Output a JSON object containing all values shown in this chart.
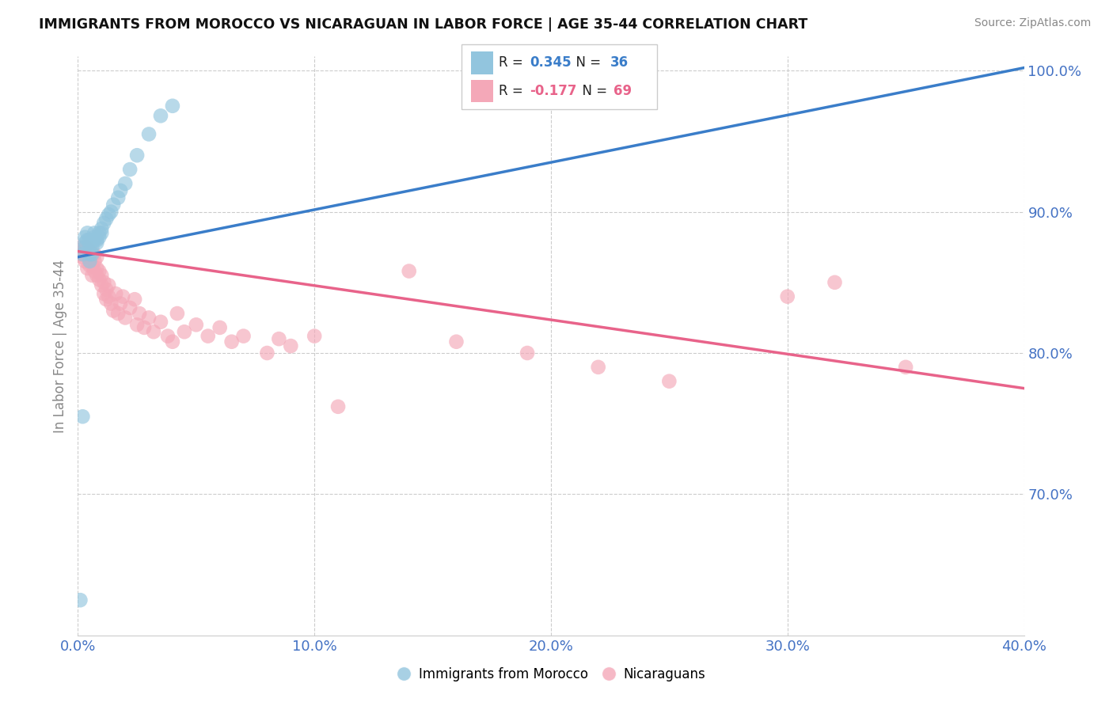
{
  "title": "IMMIGRANTS FROM MOROCCO VS NICARAGUAN IN LABOR FORCE | AGE 35-44 CORRELATION CHART",
  "source": "Source: ZipAtlas.com",
  "ylabel": "In Labor Force | Age 35-44",
  "legend_labels": [
    "Immigrants from Morocco",
    "Nicaraguans"
  ],
  "r_morocco": 0.345,
  "n_morocco": 36,
  "r_nicaraguan": -0.177,
  "n_nicaraguan": 69,
  "xlim": [
    0.0,
    0.4
  ],
  "ylim": [
    0.6,
    1.01
  ],
  "yticks": [
    0.7,
    0.8,
    0.9,
    1.0
  ],
  "xticks": [
    0.0,
    0.1,
    0.2,
    0.3,
    0.4
  ],
  "morocco_color": "#92c5de",
  "nicaraguan_color": "#f4a8b8",
  "morocco_line_color": "#3a7dc9",
  "nicaraguan_line_color": "#e8638a",
  "morocco_scatter_x": [
    0.001,
    0.002,
    0.002,
    0.003,
    0.003,
    0.003,
    0.004,
    0.004,
    0.005,
    0.005,
    0.005,
    0.005,
    0.006,
    0.006,
    0.007,
    0.007,
    0.007,
    0.008,
    0.008,
    0.009,
    0.009,
    0.01,
    0.01,
    0.011,
    0.012,
    0.013,
    0.014,
    0.015,
    0.017,
    0.018,
    0.02,
    0.022,
    0.025,
    0.03,
    0.035,
    0.04
  ],
  "morocco_scatter_y": [
    0.625,
    0.755,
    0.87,
    0.875,
    0.878,
    0.882,
    0.88,
    0.885,
    0.865,
    0.87,
    0.875,
    0.88,
    0.87,
    0.875,
    0.88,
    0.882,
    0.885,
    0.878,
    0.88,
    0.882,
    0.885,
    0.885,
    0.888,
    0.892,
    0.895,
    0.898,
    0.9,
    0.905,
    0.91,
    0.915,
    0.92,
    0.93,
    0.94,
    0.955,
    0.968,
    0.975
  ],
  "nicaraguan_scatter_x": [
    0.001,
    0.001,
    0.002,
    0.002,
    0.003,
    0.003,
    0.003,
    0.004,
    0.004,
    0.004,
    0.005,
    0.005,
    0.005,
    0.006,
    0.006,
    0.006,
    0.007,
    0.007,
    0.007,
    0.008,
    0.008,
    0.008,
    0.009,
    0.009,
    0.01,
    0.01,
    0.011,
    0.011,
    0.012,
    0.012,
    0.013,
    0.013,
    0.014,
    0.015,
    0.016,
    0.017,
    0.018,
    0.019,
    0.02,
    0.022,
    0.024,
    0.025,
    0.026,
    0.028,
    0.03,
    0.032,
    0.035,
    0.038,
    0.04,
    0.042,
    0.045,
    0.05,
    0.055,
    0.06,
    0.065,
    0.07,
    0.08,
    0.085,
    0.09,
    0.1,
    0.11,
    0.14,
    0.16,
    0.19,
    0.22,
    0.25,
    0.3,
    0.32,
    0.35
  ],
  "nicaraguan_scatter_y": [
    0.87,
    0.875,
    0.868,
    0.872,
    0.865,
    0.87,
    0.875,
    0.86,
    0.868,
    0.875,
    0.862,
    0.868,
    0.872,
    0.855,
    0.862,
    0.87,
    0.858,
    0.865,
    0.87,
    0.855,
    0.86,
    0.868,
    0.852,
    0.858,
    0.848,
    0.855,
    0.842,
    0.85,
    0.838,
    0.845,
    0.84,
    0.848,
    0.835,
    0.83,
    0.842,
    0.828,
    0.835,
    0.84,
    0.825,
    0.832,
    0.838,
    0.82,
    0.828,
    0.818,
    0.825,
    0.815,
    0.822,
    0.812,
    0.808,
    0.828,
    0.815,
    0.82,
    0.812,
    0.818,
    0.808,
    0.812,
    0.8,
    0.81,
    0.805,
    0.812,
    0.762,
    0.858,
    0.808,
    0.8,
    0.79,
    0.78,
    0.84,
    0.85,
    0.79
  ],
  "morocco_line": {
    "x0": 0.0,
    "y0": 0.868,
    "x1": 0.4,
    "y1": 1.002
  },
  "nicaraguan_line": {
    "x0": 0.0,
    "y0": 0.872,
    "x1": 0.4,
    "y1": 0.775
  }
}
